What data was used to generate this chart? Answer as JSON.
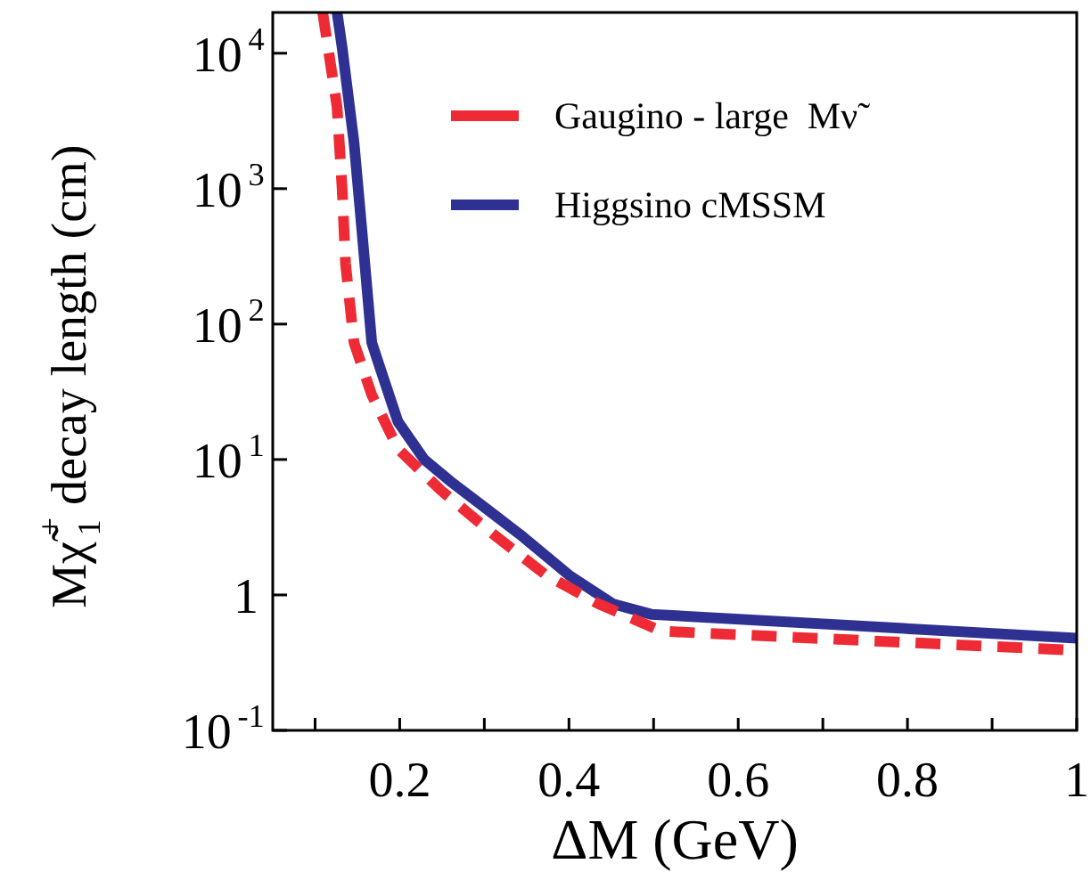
{
  "chart_data": {
    "type": "line",
    "xlabel": "ΔM (GeV)",
    "ylabel": "Mχ̃$_{1}$$^{+}$ decay length (cm)",
    "log": "y",
    "grid": false,
    "legend": "top right",
    "marker": "none",
    "xlim": [
      0.05,
      1
    ],
    "xticks": [
      {
        "value": 0.1,
        "label": null
      },
      0.2,
      {
        "value": 0.3,
        "label": null
      },
      0.4,
      {
        "value": 0.5,
        "label": null
      },
      0.6,
      {
        "value": 0.7,
        "label": null
      },
      0.8,
      {
        "value": 0.9,
        "label": null
      },
      1
    ],
    "ylim": [
      0.1,
      20000
    ],
    "yticks": [
      {
        "value": 0.1,
        "label": "10$^{-1}$"
      },
      1,
      {
        "value": 10,
        "label": "10$^{1}$"
      },
      {
        "value": 100,
        "label": "10$^{2}$"
      },
      {
        "value": 1000,
        "label": "10$^{3}$"
      },
      {
        "value": 10000,
        "label": "10$^{4}$"
      }
    ],
    "series": [
      {
        "name": "Gaugino - large  Mν̃",
        "color": "#ee2a35",
        "line_style": "dashed",
        "x": [
          0.109,
          0.126,
          0.132,
          0.136,
          0.146,
          0.167,
          0.198,
          0.249,
          0.311,
          0.373,
          0.435,
          0.509,
          1.0
        ],
        "values": [
          20000,
          4000,
          1000,
          280,
          73,
          30,
          12,
          5.9,
          2.8,
          1.4,
          0.86,
          0.54,
          0.39
        ]
      },
      {
        "name": "Higgsino cMSSM",
        "color": "#2e3192",
        "line_style": "solid",
        "x": [
          0.126,
          0.132,
          0.146,
          0.153,
          0.167,
          0.177,
          0.198,
          0.229,
          0.26,
          0.301,
          0.342,
          0.4,
          0.452,
          0.497,
          1.0
        ],
        "values": [
          20000,
          11000,
          2200,
          720,
          73,
          47,
          19,
          10,
          6.9,
          4.4,
          2.8,
          1.4,
          0.86,
          0.72,
          0.48
        ]
      }
    ]
  }
}
